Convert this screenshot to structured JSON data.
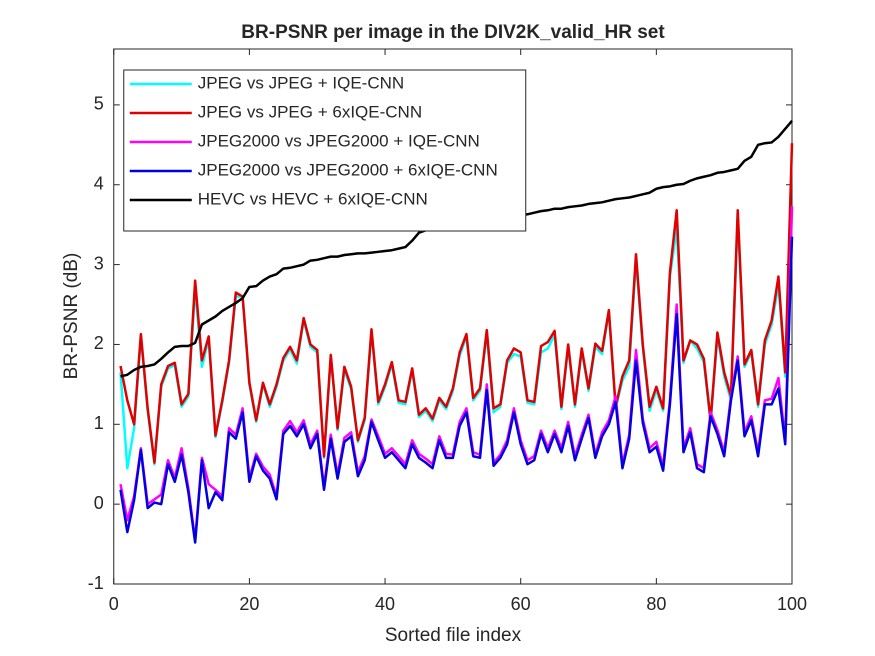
{
  "chart_data": {
    "type": "line",
    "title": "BR-PSNR per image in the DIV2K_valid_HR set",
    "x_label": "Sorted file index",
    "y_label": "BR-PSNR (dB)",
    "xlim": [
      0,
      100
    ],
    "ylim": [
      -1,
      5.7
    ],
    "xticks": [
      0,
      20,
      40,
      60,
      80,
      100
    ],
    "yticks": [
      -1,
      0,
      1,
      2,
      3,
      4,
      5
    ],
    "legend": "northwest",
    "x": [
      1,
      2,
      3,
      4,
      5,
      6,
      7,
      8,
      9,
      10,
      11,
      12,
      13,
      14,
      15,
      16,
      17,
      18,
      19,
      20,
      21,
      22,
      23,
      24,
      25,
      26,
      27,
      28,
      29,
      30,
      31,
      32,
      33,
      34,
      35,
      36,
      37,
      38,
      39,
      40,
      41,
      42,
      43,
      44,
      45,
      46,
      47,
      48,
      49,
      50,
      51,
      52,
      53,
      54,
      55,
      56,
      57,
      58,
      59,
      60,
      61,
      62,
      63,
      64,
      65,
      66,
      67,
      68,
      69,
      70,
      71,
      72,
      73,
      74,
      75,
      76,
      77,
      78,
      79,
      80,
      81,
      82,
      83,
      84,
      85,
      86,
      87,
      88,
      89,
      90,
      91,
      92,
      93,
      94,
      95,
      96,
      97,
      98,
      99,
      100
    ],
    "series": [
      {
        "name": "JPEG vs JPEG + IQE-CNN",
        "color": "#00ffff",
        "values": [
          1.65,
          0.45,
          0.95,
          2.1,
          1.17,
          0.5,
          1.47,
          1.7,
          1.74,
          1.22,
          1.35,
          2.7,
          1.72,
          2.07,
          0.84,
          1.27,
          1.77,
          2.6,
          2.6,
          1.5,
          1.03,
          1.5,
          1.22,
          1.47,
          1.8,
          1.94,
          1.76,
          2.3,
          1.97,
          1.9,
          0.58,
          1.84,
          0.93,
          1.68,
          1.44,
          0.78,
          1.05,
          2.16,
          1.25,
          1.47,
          1.75,
          1.27,
          1.25,
          1.67,
          1.09,
          1.17,
          1.04,
          1.3,
          1.19,
          1.42,
          1.86,
          2.1,
          1.3,
          1.42,
          2.13,
          1.15,
          1.22,
          1.77,
          1.88,
          1.85,
          1.27,
          1.25,
          1.9,
          1.95,
          2.12,
          1.19,
          1.97,
          1.22,
          1.92,
          1.42,
          1.97,
          1.88,
          2.4,
          1.2,
          1.55,
          1.72,
          3.05,
          1.96,
          1.17,
          1.43,
          1.17,
          2.85,
          3.45,
          1.77,
          2.05,
          1.95,
          1.78,
          1.02,
          2.1,
          1.6,
          1.3,
          3.6,
          1.72,
          1.9,
          1.22,
          2.0,
          2.25,
          2.75,
          1.6,
          3.73
        ]
      },
      {
        "name": "JPEG vs JPEG + 6xIQE-CNN",
        "color": "#e00000",
        "values": [
          1.73,
          1.3,
          1.0,
          2.13,
          1.2,
          0.52,
          1.5,
          1.73,
          1.77,
          1.25,
          1.38,
          2.8,
          1.8,
          2.1,
          0.86,
          1.3,
          1.8,
          2.65,
          2.6,
          1.52,
          1.05,
          1.52,
          1.25,
          1.5,
          1.83,
          1.97,
          1.8,
          2.33,
          2.0,
          1.93,
          0.6,
          1.87,
          0.95,
          1.72,
          1.47,
          0.8,
          1.08,
          2.19,
          1.28,
          1.5,
          1.78,
          1.3,
          1.28,
          1.7,
          1.12,
          1.2,
          1.07,
          1.33,
          1.22,
          1.45,
          1.9,
          2.13,
          1.33,
          1.45,
          2.18,
          1.2,
          1.25,
          1.8,
          1.95,
          1.9,
          1.3,
          1.28,
          1.98,
          2.03,
          2.17,
          1.22,
          2.0,
          1.25,
          1.95,
          1.45,
          2.01,
          1.92,
          2.43,
          1.22,
          1.6,
          1.8,
          3.13,
          2.0,
          1.22,
          1.47,
          1.2,
          2.9,
          3.68,
          1.8,
          2.05,
          2.0,
          1.82,
          1.05,
          2.15,
          1.65,
          1.35,
          3.68,
          1.75,
          1.93,
          1.25,
          2.05,
          2.3,
          2.85,
          1.65,
          4.52
        ]
      },
      {
        "name": "JPEG2000 vs JPEG2000 + IQE-CNN",
        "color": "#ff00ff",
        "values": [
          0.25,
          -0.2,
          0.1,
          0.7,
          0.0,
          0.06,
          0.12,
          0.55,
          0.33,
          0.7,
          0.2,
          -0.45,
          0.58,
          0.25,
          0.18,
          0.1,
          0.95,
          0.87,
          1.2,
          0.33,
          0.63,
          0.47,
          0.37,
          0.1,
          0.92,
          1.04,
          0.9,
          1.05,
          0.75,
          0.92,
          0.22,
          0.87,
          0.37,
          0.83,
          0.9,
          0.4,
          0.6,
          1.06,
          0.85,
          0.63,
          0.7,
          0.6,
          0.5,
          0.8,
          0.63,
          0.57,
          0.5,
          0.85,
          0.63,
          0.62,
          1.03,
          1.2,
          0.65,
          0.62,
          1.5,
          0.52,
          0.62,
          0.8,
          1.2,
          0.8,
          0.55,
          0.6,
          0.92,
          0.7,
          0.92,
          0.7,
          1.03,
          0.6,
          0.87,
          1.12,
          0.62,
          0.9,
          1.05,
          1.35,
          0.5,
          0.87,
          1.93,
          1.07,
          0.7,
          0.78,
          0.47,
          1.3,
          2.5,
          0.7,
          0.95,
          0.5,
          0.45,
          1.15,
          0.93,
          0.65,
          1.35,
          1.85,
          0.9,
          1.1,
          0.65,
          1.3,
          1.32,
          1.58,
          0.8,
          3.73
        ]
      },
      {
        "name": "JPEG2000 vs JPEG2000 + 6xIQE-CNN",
        "color": "#0000e0",
        "values": [
          0.18,
          -0.35,
          0.05,
          0.68,
          -0.05,
          0.02,
          0.0,
          0.5,
          0.28,
          0.62,
          0.15,
          -0.48,
          0.55,
          -0.05,
          0.15,
          0.05,
          0.9,
          0.82,
          1.15,
          0.28,
          0.6,
          0.42,
          0.32,
          0.06,
          0.88,
          0.98,
          0.85,
          1.0,
          0.7,
          0.88,
          0.18,
          0.82,
          0.32,
          0.78,
          0.85,
          0.35,
          0.55,
          1.03,
          0.8,
          0.58,
          0.65,
          0.55,
          0.45,
          0.75,
          0.58,
          0.52,
          0.45,
          0.8,
          0.58,
          0.58,
          0.98,
          1.15,
          0.6,
          0.58,
          1.43,
          0.48,
          0.58,
          0.75,
          1.15,
          0.75,
          0.5,
          0.55,
          0.88,
          0.65,
          0.88,
          0.65,
          0.98,
          0.55,
          0.82,
          1.08,
          0.58,
          0.85,
          1.0,
          1.28,
          0.45,
          0.82,
          1.8,
          1.02,
          0.65,
          0.72,
          0.42,
          1.25,
          2.38,
          0.65,
          0.9,
          0.45,
          0.4,
          1.1,
          0.88,
          0.6,
          1.3,
          1.8,
          0.85,
          1.05,
          0.6,
          1.25,
          1.25,
          1.45,
          0.75,
          3.35
        ]
      },
      {
        "name": "HEVC vs HEVC + 6xIQE-CNN",
        "color": "#000000",
        "values": [
          1.6,
          1.62,
          1.68,
          1.72,
          1.73,
          1.75,
          1.82,
          1.9,
          1.97,
          1.98,
          1.98,
          2.02,
          2.25,
          2.3,
          2.35,
          2.42,
          2.47,
          2.52,
          2.58,
          2.72,
          2.73,
          2.8,
          2.85,
          2.88,
          2.95,
          2.96,
          2.98,
          3.0,
          3.05,
          3.06,
          3.08,
          3.1,
          3.1,
          3.12,
          3.13,
          3.14,
          3.14,
          3.15,
          3.16,
          3.17,
          3.18,
          3.2,
          3.22,
          3.3,
          3.4,
          3.43,
          3.44,
          3.45,
          3.45,
          3.46,
          3.47,
          3.5,
          3.5,
          3.52,
          3.55,
          3.57,
          3.58,
          3.59,
          3.6,
          3.62,
          3.63,
          3.65,
          3.67,
          3.68,
          3.7,
          3.7,
          3.72,
          3.73,
          3.74,
          3.76,
          3.77,
          3.78,
          3.8,
          3.82,
          3.83,
          3.84,
          3.86,
          3.88,
          3.9,
          3.95,
          3.97,
          3.98,
          4.0,
          4.01,
          4.05,
          4.08,
          4.1,
          4.12,
          4.15,
          4.16,
          4.18,
          4.2,
          4.3,
          4.35,
          4.5,
          4.52,
          4.53,
          4.6,
          4.7,
          4.8
        ]
      }
    ]
  }
}
